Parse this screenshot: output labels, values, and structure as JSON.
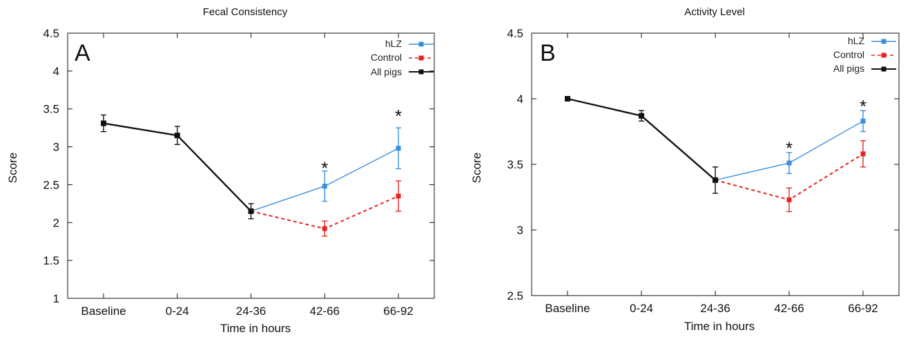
{
  "chart_data": [
    {
      "type": "line",
      "title": "Fecal Consistency",
      "panel_label": "A",
      "xlabel": "Time in hours",
      "ylabel": "Score",
      "categories": [
        "Baseline",
        "0-24",
        "24-36",
        "42-66",
        "66-92"
      ],
      "ylim": [
        1,
        4.5
      ],
      "yticks": [
        "1",
        "1.5",
        "2",
        "2.5",
        "3",
        "3.5",
        "4",
        "4.5"
      ],
      "grid": false,
      "legend_position": "top-right",
      "series": [
        {
          "name": "hLZ",
          "color": "#3a8fdc",
          "dash": false,
          "values": [
            null,
            null,
            2.15,
            2.48,
            2.98
          ],
          "errors": [
            null,
            null,
            0.0,
            0.2,
            0.27
          ]
        },
        {
          "name": "Control",
          "color": "#e8231f",
          "dash": true,
          "values": [
            null,
            null,
            2.15,
            1.92,
            2.35
          ],
          "errors": [
            null,
            null,
            0.0,
            0.1,
            0.2
          ]
        },
        {
          "name": "All pigs",
          "color": "#111111",
          "dash": false,
          "values": [
            3.31,
            3.15,
            2.15,
            null,
            null
          ],
          "errors": [
            0.11,
            0.12,
            0.1,
            null,
            null
          ]
        }
      ],
      "annotations": [
        {
          "text": "*",
          "category": "42-66",
          "y": 2.78
        },
        {
          "text": "*",
          "category": "66-92",
          "y": 3.47
        }
      ]
    },
    {
      "type": "line",
      "title": "Activity Level",
      "panel_label": "B",
      "xlabel": "Time in hours",
      "ylabel": "Score",
      "categories": [
        "Baseline",
        "0-24",
        "24-36",
        "42-66",
        "66-92"
      ],
      "ylim": [
        2.5,
        4.5
      ],
      "yticks": [
        "2.5",
        "3",
        "3.5",
        "4",
        "4.5"
      ],
      "grid": false,
      "legend_position": "top-right",
      "series": [
        {
          "name": "hLZ",
          "color": "#3a8fdc",
          "dash": false,
          "values": [
            null,
            null,
            3.38,
            3.51,
            3.83
          ],
          "errors": [
            null,
            null,
            0.0,
            0.08,
            0.08
          ]
        },
        {
          "name": "Control",
          "color": "#e8231f",
          "dash": true,
          "values": [
            null,
            null,
            3.38,
            3.23,
            3.58
          ],
          "errors": [
            null,
            null,
            0.0,
            0.09,
            0.1
          ]
        },
        {
          "name": "All pigs",
          "color": "#111111",
          "dash": false,
          "values": [
            4.0,
            3.87,
            3.38,
            null,
            null
          ],
          "errors": [
            0.0,
            0.04,
            0.1,
            null,
            null
          ]
        }
      ],
      "annotations": [
        {
          "text": "*",
          "category": "42-66",
          "y": 3.66
        },
        {
          "text": "*",
          "category": "66-92",
          "y": 3.98
        }
      ]
    }
  ]
}
